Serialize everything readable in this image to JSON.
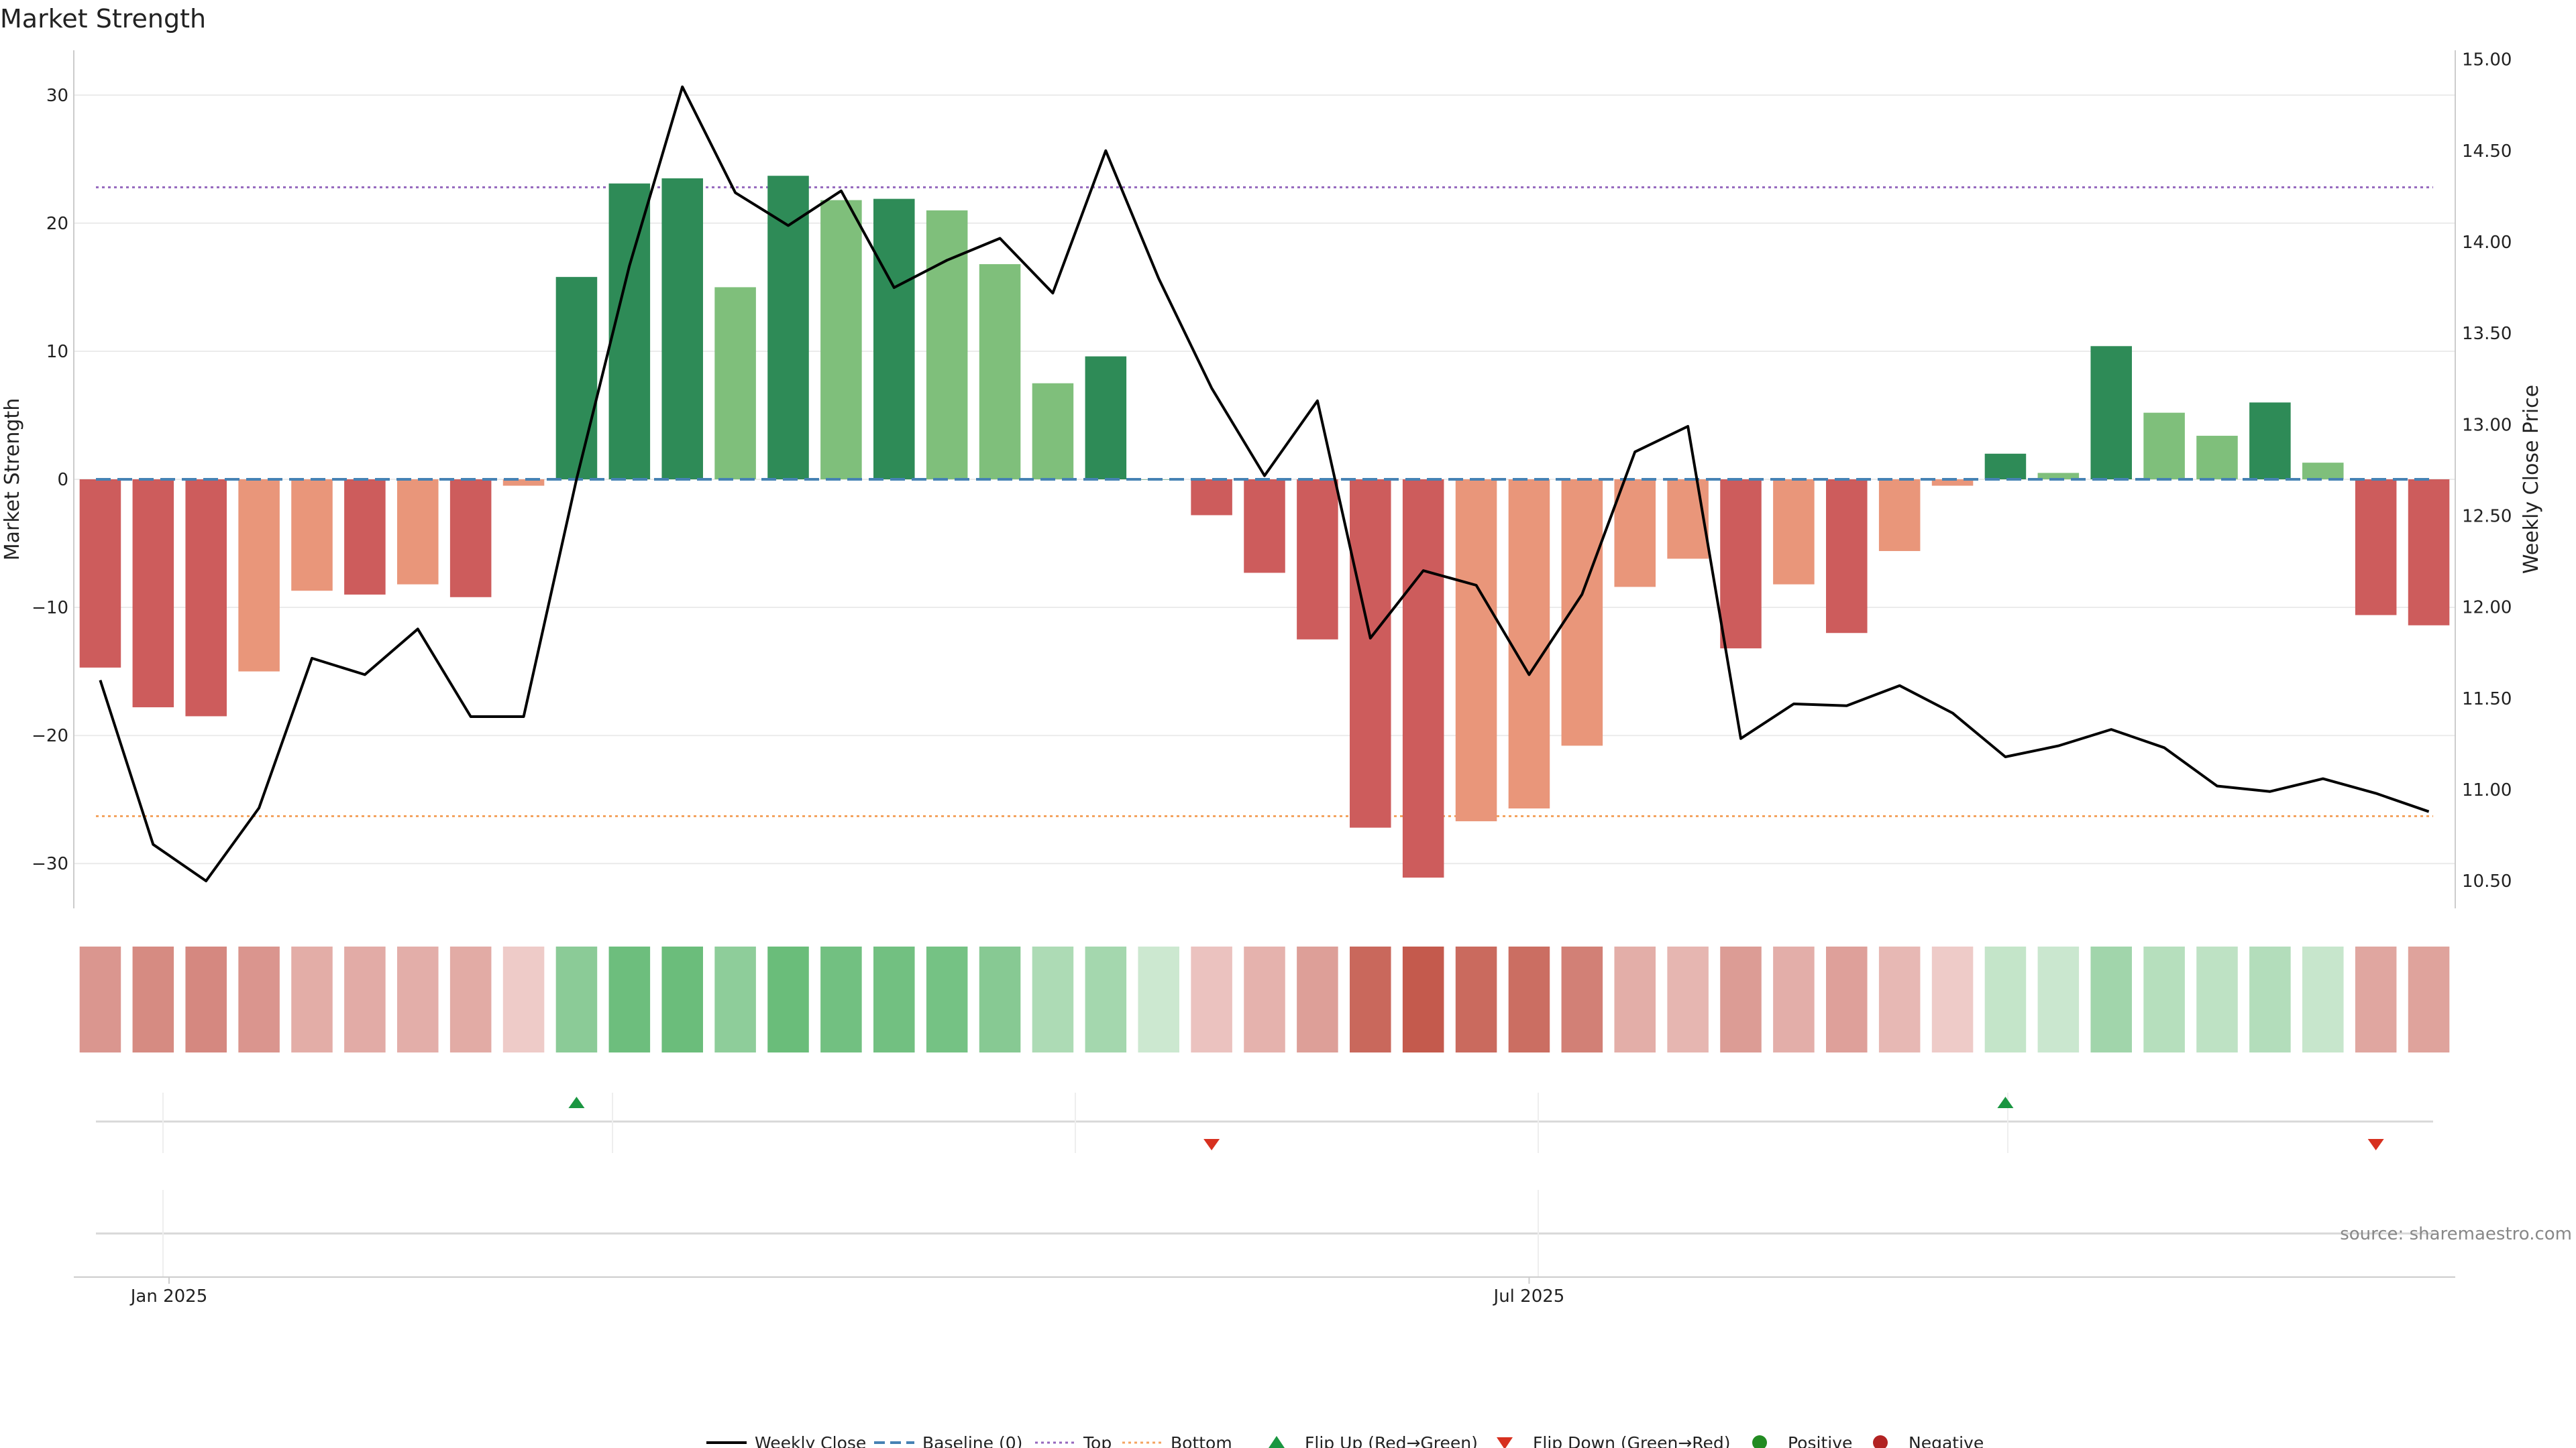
{
  "title": "Market Strength",
  "source": "source: sharemaestro.com",
  "colors": {
    "dark_green": "#2e8b57",
    "light_green": "#7fbf7b",
    "dark_red": "#cd5c5c",
    "light_red": "#e9967a",
    "price_line": "#000000",
    "baseline": "#4682b4",
    "top": "#9467bd",
    "bottom": "#f4a460",
    "flip_up": "#1a9641",
    "flip_down": "#d7301f",
    "positive": "#228b22",
    "negative": "#b22222"
  },
  "chart_data": {
    "type": "bar",
    "title": "Market Strength",
    "ylabel_left": "Market Strength",
    "ylabel_right": "Weekly Close Price",
    "ylim_left": [
      -33.5,
      33.5
    ],
    "ylim_right": [
      10.35,
      15.05
    ],
    "left_ticks": [
      30,
      20,
      10,
      0,
      -10,
      -20,
      -30
    ],
    "left_tick_labels": [
      "30",
      "20",
      "10",
      "0",
      "−10",
      "−20",
      "−30"
    ],
    "right_ticks": [
      15.0,
      14.5,
      14.0,
      13.5,
      13.0,
      12.5,
      12.0,
      11.5,
      11.0,
      10.5
    ],
    "right_tick_labels": [
      "15.00",
      "14.50",
      "14.00",
      "13.50",
      "13.00",
      "12.50",
      "12.00",
      "11.50",
      "11.00",
      "10.50"
    ],
    "x_tick_labels": [
      {
        "week_index": 1.3,
        "label": "Jan 2025"
      },
      {
        "week_index": 27.0,
        "label": "Jul 2025"
      }
    ],
    "grid": true,
    "legend_position": "bottom-center",
    "reference_lines": {
      "baseline": 0,
      "top": 22.8,
      "bottom": -26.3
    },
    "strength": [
      -14.7,
      -17.8,
      -18.5,
      -15.0,
      -8.7,
      -9.0,
      -8.2,
      -9.2,
      -0.5,
      15.8,
      23.1,
      23.5,
      15.0,
      23.7,
      21.8,
      21.9,
      21.0,
      16.8,
      7.5,
      9.6,
      0,
      -2.8,
      -7.3,
      -12.5,
      -27.2,
      -31.1,
      -26.7,
      -25.7,
      -20.8,
      -8.4,
      -6.2,
      -13.2,
      -8.2,
      -12.0,
      -5.6,
      -0.5,
      2.0,
      0.5,
      10.4,
      5.2,
      3.4,
      6.0,
      1.3,
      -10.6,
      -11.4
    ],
    "shade": [
      "dark",
      "dark",
      "dark",
      "light",
      "light",
      "dark",
      "light",
      "dark",
      "light",
      "dark",
      "dark",
      "dark",
      "light",
      "dark",
      "light",
      "dark",
      "light",
      "light",
      "light",
      "dark",
      "dark",
      "dark",
      "dark",
      "dark",
      "dark",
      "dark",
      "light",
      "light",
      "light",
      "light",
      "light",
      "dark",
      "light",
      "dark",
      "light",
      "light",
      "dark",
      "light",
      "dark",
      "light",
      "light",
      "dark",
      "light",
      "dark",
      "dark"
    ],
    "weekly_close": [
      11.6,
      10.7,
      10.5,
      10.9,
      11.72,
      11.63,
      11.88,
      11.4,
      11.4,
      12.7,
      13.87,
      14.85,
      14.27,
      14.09,
      14.28,
      13.75,
      13.9,
      14.02,
      13.72,
      14.5,
      13.8,
      13.2,
      12.72,
      13.13,
      11.83,
      12.2,
      12.12,
      11.63,
      12.07,
      12.85,
      12.99,
      11.28,
      11.47,
      11.46,
      11.57,
      11.42,
      11.18,
      11.24,
      11.33,
      11.23,
      11.02,
      10.99,
      11.06,
      10.98,
      10.88
    ],
    "flip_up_weeks": [
      9,
      36
    ],
    "flip_down_weeks": [
      21,
      43
    ],
    "strip_series": [
      {
        "name": "Positive",
        "weeks": []
      },
      {
        "name": "Negative",
        "weeks": []
      }
    ]
  },
  "legend": [
    {
      "label": "Weekly Close",
      "kind": "line",
      "color": "#000000"
    },
    {
      "label": "Baseline (0)",
      "kind": "dashed",
      "color": "#4682b4"
    },
    {
      "label": "Top",
      "kind": "dotted",
      "color": "#9467bd"
    },
    {
      "label": "Bottom",
      "kind": "dotted",
      "color": "#f4a460"
    },
    {
      "label": "Flip Up (Red→Green)",
      "kind": "tri-up",
      "color": "#1a9641"
    },
    {
      "label": "Flip Down (Green→Red)",
      "kind": "tri-down",
      "color": "#d7301f"
    },
    {
      "label": "Positive",
      "kind": "dot",
      "color": "#228b22"
    },
    {
      "label": "Negative",
      "kind": "dot",
      "color": "#b22222"
    }
  ]
}
